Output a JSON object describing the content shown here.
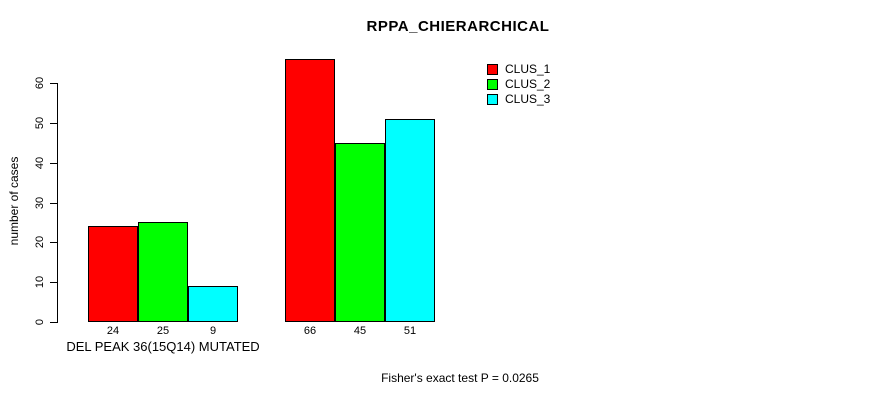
{
  "title": "RPPA_CHIERARCHICAL",
  "annotation": "Fisher's exact test P = 0.0265",
  "chart_data": {
    "type": "bar",
    "title": "RPPA_CHIERARCHICAL",
    "ylabel": "number of cases",
    "xlabel": "",
    "categories": [
      "DEL PEAK 36(15Q14) MUTATED",
      ""
    ],
    "series": [
      {
        "name": "CLUS_1",
        "color": "#FF0000",
        "values": [
          24,
          66
        ]
      },
      {
        "name": "CLUS_2",
        "color": "#00FF00",
        "values": [
          25,
          45
        ]
      },
      {
        "name": "CLUS_3",
        "color": "#00FFFF",
        "values": [
          9,
          51
        ]
      }
    ],
    "yticks": [
      0,
      10,
      20,
      30,
      40,
      50,
      60
    ],
    "ylim": [
      0,
      66
    ],
    "grid": false,
    "bar_value_labels_shown": true,
    "legend_position": "top-right",
    "annotation": "Fisher's exact test P = 0.0265"
  }
}
